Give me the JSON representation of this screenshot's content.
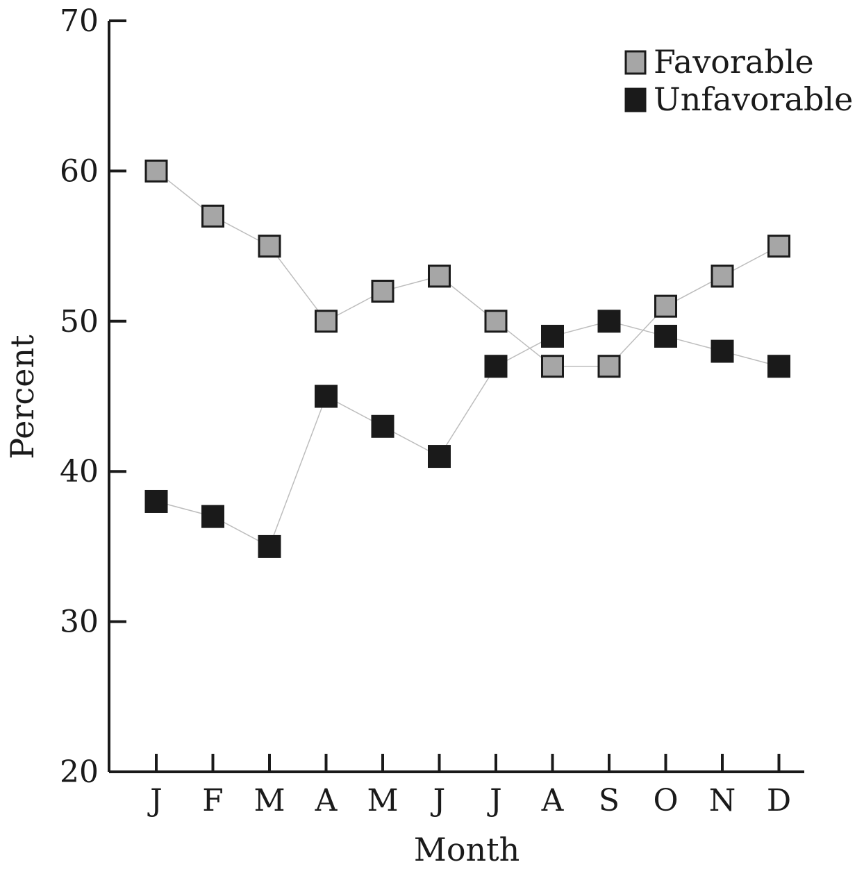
{
  "chart_data": {
    "type": "line",
    "xlabel": "Month",
    "ylabel": "Percent",
    "ylim": [
      20,
      70
    ],
    "yticks": [
      20,
      30,
      40,
      50,
      60,
      70
    ],
    "categories": [
      "J",
      "F",
      "M",
      "A",
      "M",
      "J",
      "J",
      "A",
      "S",
      "O",
      "N",
      "D"
    ],
    "series": [
      {
        "name": "Favorable",
        "color": "#a6a6a6",
        "values": [
          60,
          57,
          55,
          50,
          52,
          53,
          50,
          47,
          47,
          51,
          53,
          55
        ]
      },
      {
        "name": "Unfavorable",
        "color": "#1a1a1a",
        "values": [
          38,
          37,
          35,
          45,
          43,
          41,
          47,
          49,
          50,
          49,
          48,
          47
        ]
      }
    ],
    "legend_position": "top-right",
    "grid": false
  }
}
